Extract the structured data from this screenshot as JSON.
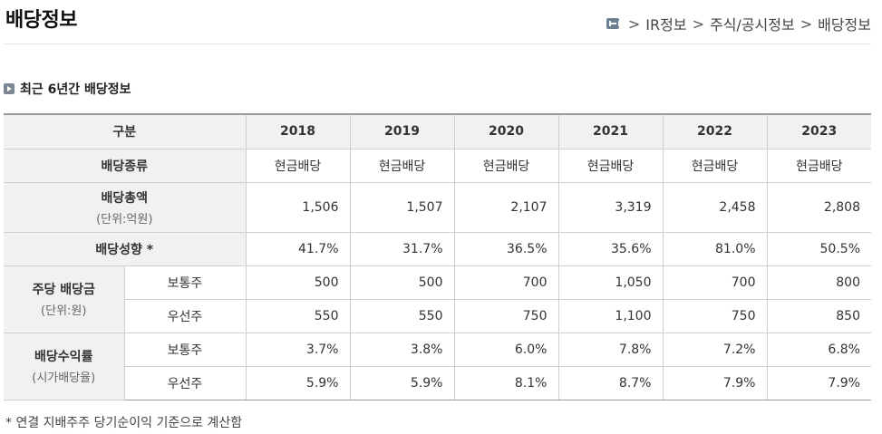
{
  "page": {
    "title": "배당정보",
    "breadcrumb": [
      "IR정보",
      "주식/공시정보",
      "배당정보"
    ],
    "breadcrumb_separator": ">"
  },
  "section": {
    "heading": "최근 6년간 배당정보"
  },
  "table": {
    "header_label": "구분",
    "years": [
      "2018",
      "2019",
      "2020",
      "2021",
      "2022",
      "2023"
    ],
    "type_row": {
      "label": "배당종류",
      "values": [
        "현금배당",
        "현금배당",
        "현금배당",
        "현금배당",
        "현금배당",
        "현금배당"
      ]
    },
    "total_row": {
      "label": "배당총액",
      "unit": "(단위:억원)",
      "values": [
        "1,506",
        "1,507",
        "2,107",
        "3,319",
        "2,458",
        "2,808"
      ]
    },
    "payout_row": {
      "label": "배당성향 *",
      "values": [
        "41.7%",
        "31.7%",
        "36.5%",
        "35.6%",
        "81.0%",
        "50.5%"
      ]
    },
    "dps": {
      "label": "주당 배당금",
      "unit": "(단위:원)",
      "common": {
        "label": "보통주",
        "values": [
          "500",
          "500",
          "700",
          "1,050",
          "700",
          "800"
        ]
      },
      "preferred": {
        "label": "우선주",
        "values": [
          "550",
          "550",
          "750",
          "1,100",
          "750",
          "850"
        ]
      }
    },
    "yield": {
      "label": "배당수익률",
      "unit": "(시가배당율)",
      "common": {
        "label": "보통주",
        "values": [
          "3.7%",
          "3.8%",
          "6.0%",
          "7.8%",
          "7.2%",
          "6.8%"
        ]
      },
      "preferred": {
        "label": "우선주",
        "values": [
          "5.9%",
          "5.9%",
          "8.1%",
          "8.7%",
          "7.9%",
          "7.9%"
        ]
      }
    }
  },
  "footnote": "* 연결 지배주주 당기순이익 기준으로 계산함",
  "colors": {
    "header_bg": "#f1f1f1",
    "border": "#cfcfcf",
    "accent_icon": "#7c8794"
  },
  "icons": {
    "home": "home-icon",
    "bullet": "play-icon"
  }
}
